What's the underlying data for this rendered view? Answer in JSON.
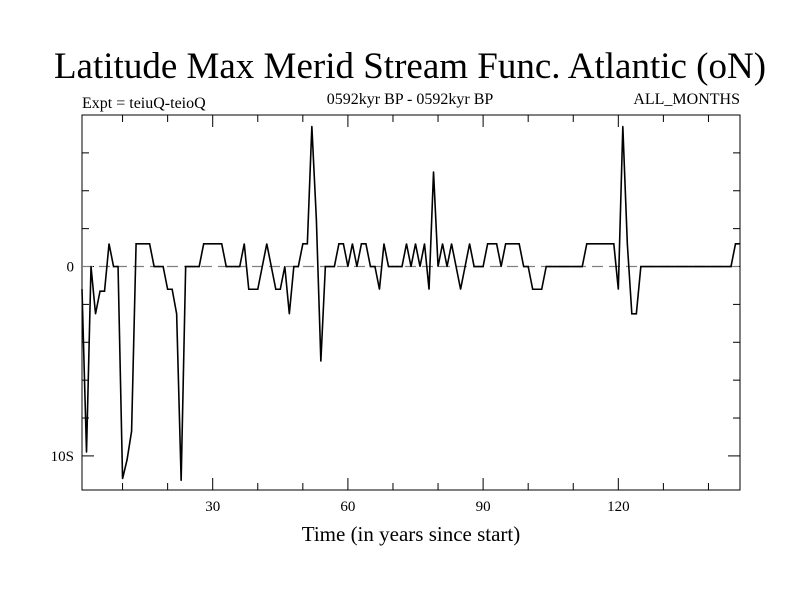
{
  "chart_data": {
    "type": "line",
    "title": "Latitude Max Merid Stream Func. Atlantic (oN)",
    "subtitle_left": "Expt = teiuQ-teioQ",
    "subtitle_center": "0592kyr BP - 0592kyr BP",
    "subtitle_right": "ALL_MONTHS",
    "xlabel": "Time (in years since start)",
    "ylabel": "",
    "xlim": [
      1,
      147
    ],
    "ylim": [
      -11.8,
      8
    ],
    "x_ticks": [
      30,
      60,
      90,
      120
    ],
    "x_tick_labels": [
      "30",
      "60",
      "90",
      "120"
    ],
    "y_ticks": [
      0,
      -10
    ],
    "y_tick_labels": [
      "0",
      "10S"
    ],
    "zero_line": {
      "y": 0,
      "style": "dashed",
      "color": "#808080"
    },
    "grid": false,
    "series": [
      {
        "color": "#000000",
        "x": [
          1,
          2,
          3,
          4,
          5,
          6,
          7,
          8,
          9,
          10,
          11,
          12,
          13,
          14,
          15,
          16,
          17,
          18,
          19,
          20,
          21,
          22,
          23,
          24,
          25,
          26,
          27,
          28,
          29,
          30,
          31,
          32,
          33,
          34,
          35,
          36,
          37,
          38,
          39,
          40,
          41,
          42,
          43,
          44,
          45,
          46,
          47,
          48,
          49,
          50,
          51,
          52,
          53,
          54,
          55,
          56,
          57,
          58,
          59,
          60,
          61,
          62,
          63,
          64,
          65,
          66,
          67,
          68,
          69,
          70,
          71,
          72,
          73,
          74,
          75,
          76,
          77,
          78,
          79,
          80,
          81,
          82,
          83,
          84,
          85,
          86,
          87,
          88,
          89,
          90,
          91,
          92,
          93,
          94,
          95,
          96,
          97,
          98,
          99,
          100,
          101,
          102,
          103,
          104,
          105,
          106,
          107,
          108,
          109,
          110,
          111,
          112,
          113,
          114,
          115,
          116,
          117,
          118,
          119,
          120,
          121,
          122,
          123,
          124,
          125,
          126,
          127,
          128,
          129,
          130,
          131,
          132,
          133,
          134,
          135,
          136,
          137,
          138,
          139,
          140,
          141,
          142,
          143,
          144,
          145,
          146,
          147
        ],
        "values": [
          -1.2,
          -9.8,
          0,
          -2.5,
          -1.3,
          -1.3,
          1.2,
          0,
          0,
          -11.2,
          -10.2,
          -8.7,
          1.2,
          1.2,
          1.2,
          1.2,
          0,
          0,
          0,
          -1.2,
          -1.2,
          -2.5,
          -11.3,
          0,
          0,
          0,
          0,
          1.2,
          1.2,
          1.2,
          1.2,
          1.2,
          0,
          0,
          0,
          0,
          1.2,
          -1.2,
          -1.2,
          -1.2,
          0,
          1.2,
          0,
          -1.2,
          -1.2,
          0,
          -2.5,
          0,
          0,
          1.2,
          1.2,
          7.4,
          2.5,
          -5,
          0,
          0,
          0,
          1.2,
          1.2,
          0,
          1.2,
          0,
          1.2,
          1.2,
          0,
          0,
          -1.2,
          1.2,
          0,
          0,
          0,
          0,
          1.2,
          0,
          1.2,
          0,
          1.2,
          -1.2,
          5,
          0,
          1.2,
          0,
          1.2,
          0,
          -1.2,
          0,
          1.2,
          0,
          0,
          0,
          1.2,
          1.2,
          1.2,
          0,
          1.2,
          1.2,
          1.2,
          1.2,
          0,
          0,
          -1.2,
          -1.2,
          -1.2,
          0,
          0,
          0,
          0,
          0,
          0,
          0,
          0,
          0,
          1.2,
          1.2,
          1.2,
          1.2,
          1.2,
          1.2,
          1.2,
          -1.2,
          7.4,
          1.2,
          -2.5,
          -2.5,
          0,
          0,
          0,
          0,
          0,
          0,
          0,
          0,
          0,
          0,
          0,
          0,
          0,
          0,
          0,
          0,
          0,
          0,
          0,
          0,
          0,
          1.2,
          1.2
        ]
      }
    ]
  }
}
